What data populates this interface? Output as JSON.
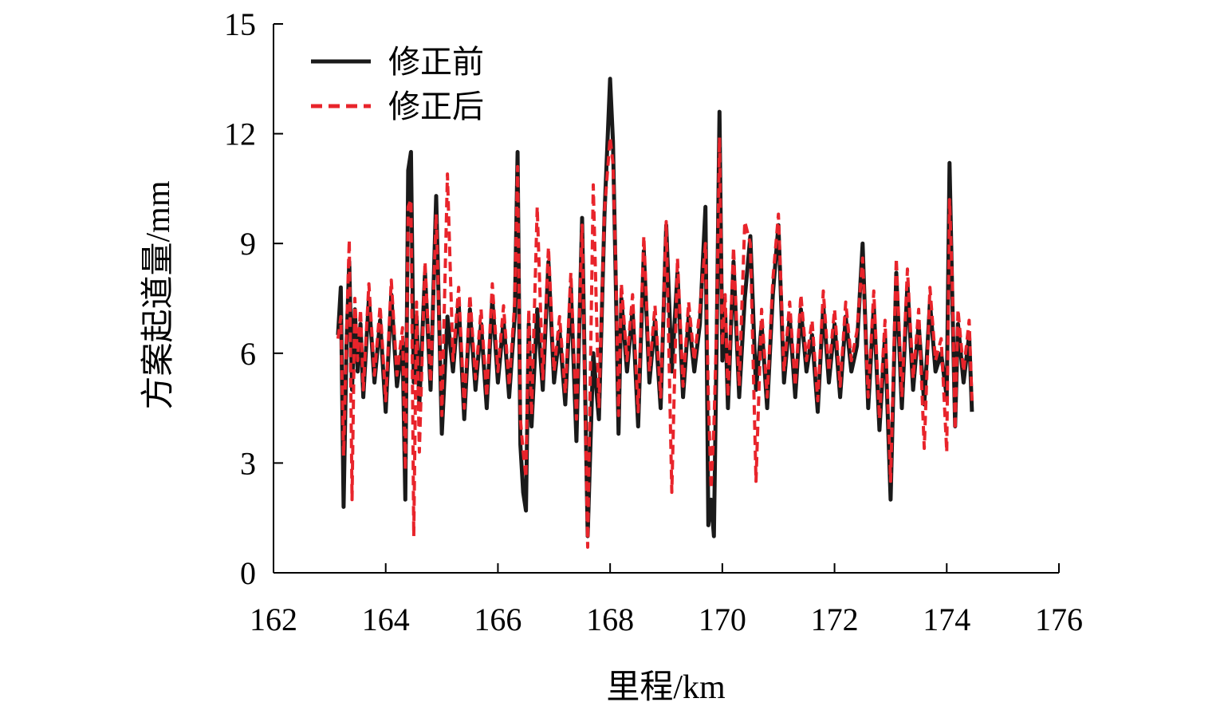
{
  "chart_data": {
    "type": "line",
    "xlabel": "里程/km",
    "ylabel": "方案起道量/mm",
    "xlim": [
      162,
      176
    ],
    "ylim": [
      0,
      15
    ],
    "xticks": [
      162,
      164,
      166,
      168,
      170,
      172,
      174,
      176
    ],
    "yticks": [
      0,
      3,
      6,
      9,
      12,
      15
    ],
    "legend_position": "top-left",
    "x_range": [
      163.15,
      174.45
    ],
    "series": [
      {
        "name": "修正前",
        "color": "#1a1a1a",
        "style": "solid",
        "x": [
          163.15,
          163.2,
          163.25,
          163.3,
          163.35,
          163.4,
          163.45,
          163.5,
          163.55,
          163.6,
          163.7,
          163.8,
          163.9,
          164.0,
          164.1,
          164.2,
          164.3,
          164.35,
          164.4,
          164.45,
          164.5,
          164.55,
          164.6,
          164.7,
          164.8,
          164.9,
          165.0,
          165.1,
          165.2,
          165.3,
          165.4,
          165.5,
          165.6,
          165.7,
          165.8,
          165.9,
          166.0,
          166.1,
          166.2,
          166.3,
          166.35,
          166.4,
          166.45,
          166.5,
          166.55,
          166.6,
          166.7,
          166.8,
          166.9,
          167.0,
          167.1,
          167.2,
          167.3,
          167.4,
          167.5,
          167.6,
          167.7,
          167.8,
          167.9,
          168.0,
          168.05,
          168.1,
          168.15,
          168.2,
          168.3,
          168.4,
          168.5,
          168.6,
          168.7,
          168.8,
          168.9,
          169.0,
          169.1,
          169.2,
          169.3,
          169.4,
          169.5,
          169.6,
          169.7,
          169.75,
          169.8,
          169.85,
          169.9,
          169.95,
          170.0,
          170.05,
          170.1,
          170.2,
          170.3,
          170.4,
          170.5,
          170.6,
          170.7,
          170.8,
          170.9,
          171.0,
          171.1,
          171.2,
          171.3,
          171.4,
          171.5,
          171.6,
          171.7,
          171.8,
          171.9,
          172.0,
          172.1,
          172.2,
          172.3,
          172.4,
          172.5,
          172.6,
          172.7,
          172.8,
          172.9,
          173.0,
          173.1,
          173.2,
          173.3,
          173.4,
          173.5,
          173.6,
          173.7,
          173.8,
          173.9,
          174.0,
          174.05,
          174.1,
          174.15,
          174.2,
          174.3,
          174.4,
          174.45
        ],
        "values": [
          6.5,
          7.8,
          1.8,
          6.2,
          8.5,
          5.0,
          7.2,
          5.5,
          6.8,
          4.8,
          7.5,
          5.2,
          6.9,
          4.4,
          7.6,
          5.1,
          6.3,
          2.0,
          11.0,
          11.5,
          5.2,
          7.0,
          4.6,
          8.2,
          5.0,
          10.3,
          3.8,
          7.0,
          5.5,
          7.4,
          4.2,
          7.2,
          5.0,
          6.8,
          4.5,
          7.5,
          5.2,
          6.9,
          4.8,
          7.0,
          11.5,
          3.5,
          2.2,
          1.7,
          6.8,
          4.0,
          7.2,
          5.0,
          8.5,
          5.2,
          6.6,
          4.6,
          7.8,
          3.6,
          9.7,
          1.0,
          6.0,
          4.2,
          9.8,
          13.5,
          11.8,
          8.0,
          3.8,
          7.5,
          5.5,
          7.2,
          4.0,
          8.8,
          5.2,
          6.9,
          4.5,
          9.5,
          5.5,
          8.2,
          4.8,
          7.0,
          5.5,
          6.8,
          10.0,
          1.3,
          2.0,
          1.0,
          6.4,
          12.6,
          5.8,
          7.2,
          4.5,
          8.5,
          4.8,
          7.5,
          9.2,
          5.0,
          6.8,
          4.5,
          7.6,
          9.5,
          5.2,
          7.0,
          4.8,
          7.2,
          5.5,
          6.5,
          4.4,
          7.3,
          5.2,
          6.8,
          4.8,
          7.0,
          5.5,
          6.2,
          9.0,
          4.5,
          7.3,
          3.9,
          6.5,
          2.0,
          8.2,
          4.5,
          7.9,
          5.0,
          6.8,
          4.6,
          7.4,
          5.5,
          6.0,
          4.8,
          11.2,
          7.5,
          4.0,
          6.8,
          5.2,
          6.5,
          4.4
        ]
      },
      {
        "name": "修正后",
        "color": "#e8242b",
        "style": "dashed",
        "x": [
          163.15,
          163.2,
          163.25,
          163.3,
          163.35,
          163.4,
          163.45,
          163.5,
          163.55,
          163.6,
          163.7,
          163.8,
          163.9,
          164.0,
          164.1,
          164.2,
          164.3,
          164.35,
          164.4,
          164.45,
          164.5,
          164.55,
          164.6,
          164.7,
          164.8,
          164.9,
          165.0,
          165.1,
          165.2,
          165.3,
          165.4,
          165.5,
          165.6,
          165.7,
          165.8,
          165.9,
          166.0,
          166.1,
          166.2,
          166.3,
          166.35,
          166.4,
          166.45,
          166.5,
          166.55,
          166.6,
          166.7,
          166.8,
          166.9,
          167.0,
          167.1,
          167.2,
          167.3,
          167.4,
          167.5,
          167.6,
          167.7,
          167.8,
          167.9,
          168.0,
          168.05,
          168.1,
          168.15,
          168.2,
          168.3,
          168.4,
          168.5,
          168.6,
          168.7,
          168.8,
          168.9,
          169.0,
          169.1,
          169.2,
          169.3,
          169.4,
          169.5,
          169.6,
          169.7,
          169.75,
          169.8,
          169.85,
          169.9,
          169.95,
          170.0,
          170.05,
          170.1,
          170.2,
          170.3,
          170.4,
          170.5,
          170.6,
          170.7,
          170.8,
          170.9,
          171.0,
          171.1,
          171.2,
          171.3,
          171.4,
          171.5,
          171.6,
          171.7,
          171.8,
          171.9,
          172.0,
          172.1,
          172.2,
          172.3,
          172.4,
          172.5,
          172.6,
          172.7,
          172.8,
          172.9,
          173.0,
          173.1,
          173.2,
          173.3,
          173.4,
          173.5,
          173.6,
          173.7,
          173.8,
          173.9,
          174.0,
          174.05,
          174.1,
          174.15,
          174.2,
          174.3,
          174.4,
          174.45
        ],
        "values": [
          6.4,
          7.0,
          3.2,
          6.5,
          9.1,
          2.0,
          7.5,
          5.8,
          7.2,
          5.0,
          7.9,
          5.4,
          7.3,
          4.7,
          8.0,
          5.4,
          6.7,
          2.8,
          10.0,
          10.2,
          1.0,
          7.4,
          3.3,
          8.5,
          5.2,
          9.8,
          4.3,
          10.9,
          5.8,
          7.8,
          4.5,
          7.6,
          5.3,
          7.2,
          4.8,
          7.9,
          5.5,
          7.3,
          5.1,
          7.4,
          11.1,
          4.2,
          3.3,
          2.6,
          7.2,
          4.3,
          10.0,
          5.3,
          8.9,
          5.5,
          7.0,
          4.9,
          8.2,
          4.2,
          9.5,
          0.7,
          10.6,
          4.5,
          9.9,
          11.9,
          11.2,
          8.4,
          4.3,
          7.9,
          5.8,
          7.6,
          4.4,
          9.2,
          5.5,
          7.3,
          4.8,
          9.6,
          2.2,
          8.6,
          5.1,
          7.4,
          5.8,
          7.2,
          9.0,
          4.8,
          2.3,
          4.0,
          6.8,
          11.9,
          6.2,
          7.6,
          4.8,
          8.9,
          5.1,
          9.6,
          9.0,
          2.5,
          7.2,
          4.8,
          8.0,
          9.8,
          5.5,
          7.4,
          5.1,
          7.6,
          5.8,
          6.9,
          4.7,
          7.7,
          5.5,
          7.2,
          5.1,
          7.4,
          5.8,
          6.6,
          8.6,
          4.8,
          7.7,
          4.2,
          6.9,
          2.5,
          8.6,
          4.8,
          8.3,
          5.3,
          7.2,
          3.4,
          7.8,
          5.8,
          6.4,
          3.3,
          10.2,
          7.9,
          3.9,
          7.2,
          5.5,
          6.9,
          4.7
        ]
      }
    ]
  }
}
